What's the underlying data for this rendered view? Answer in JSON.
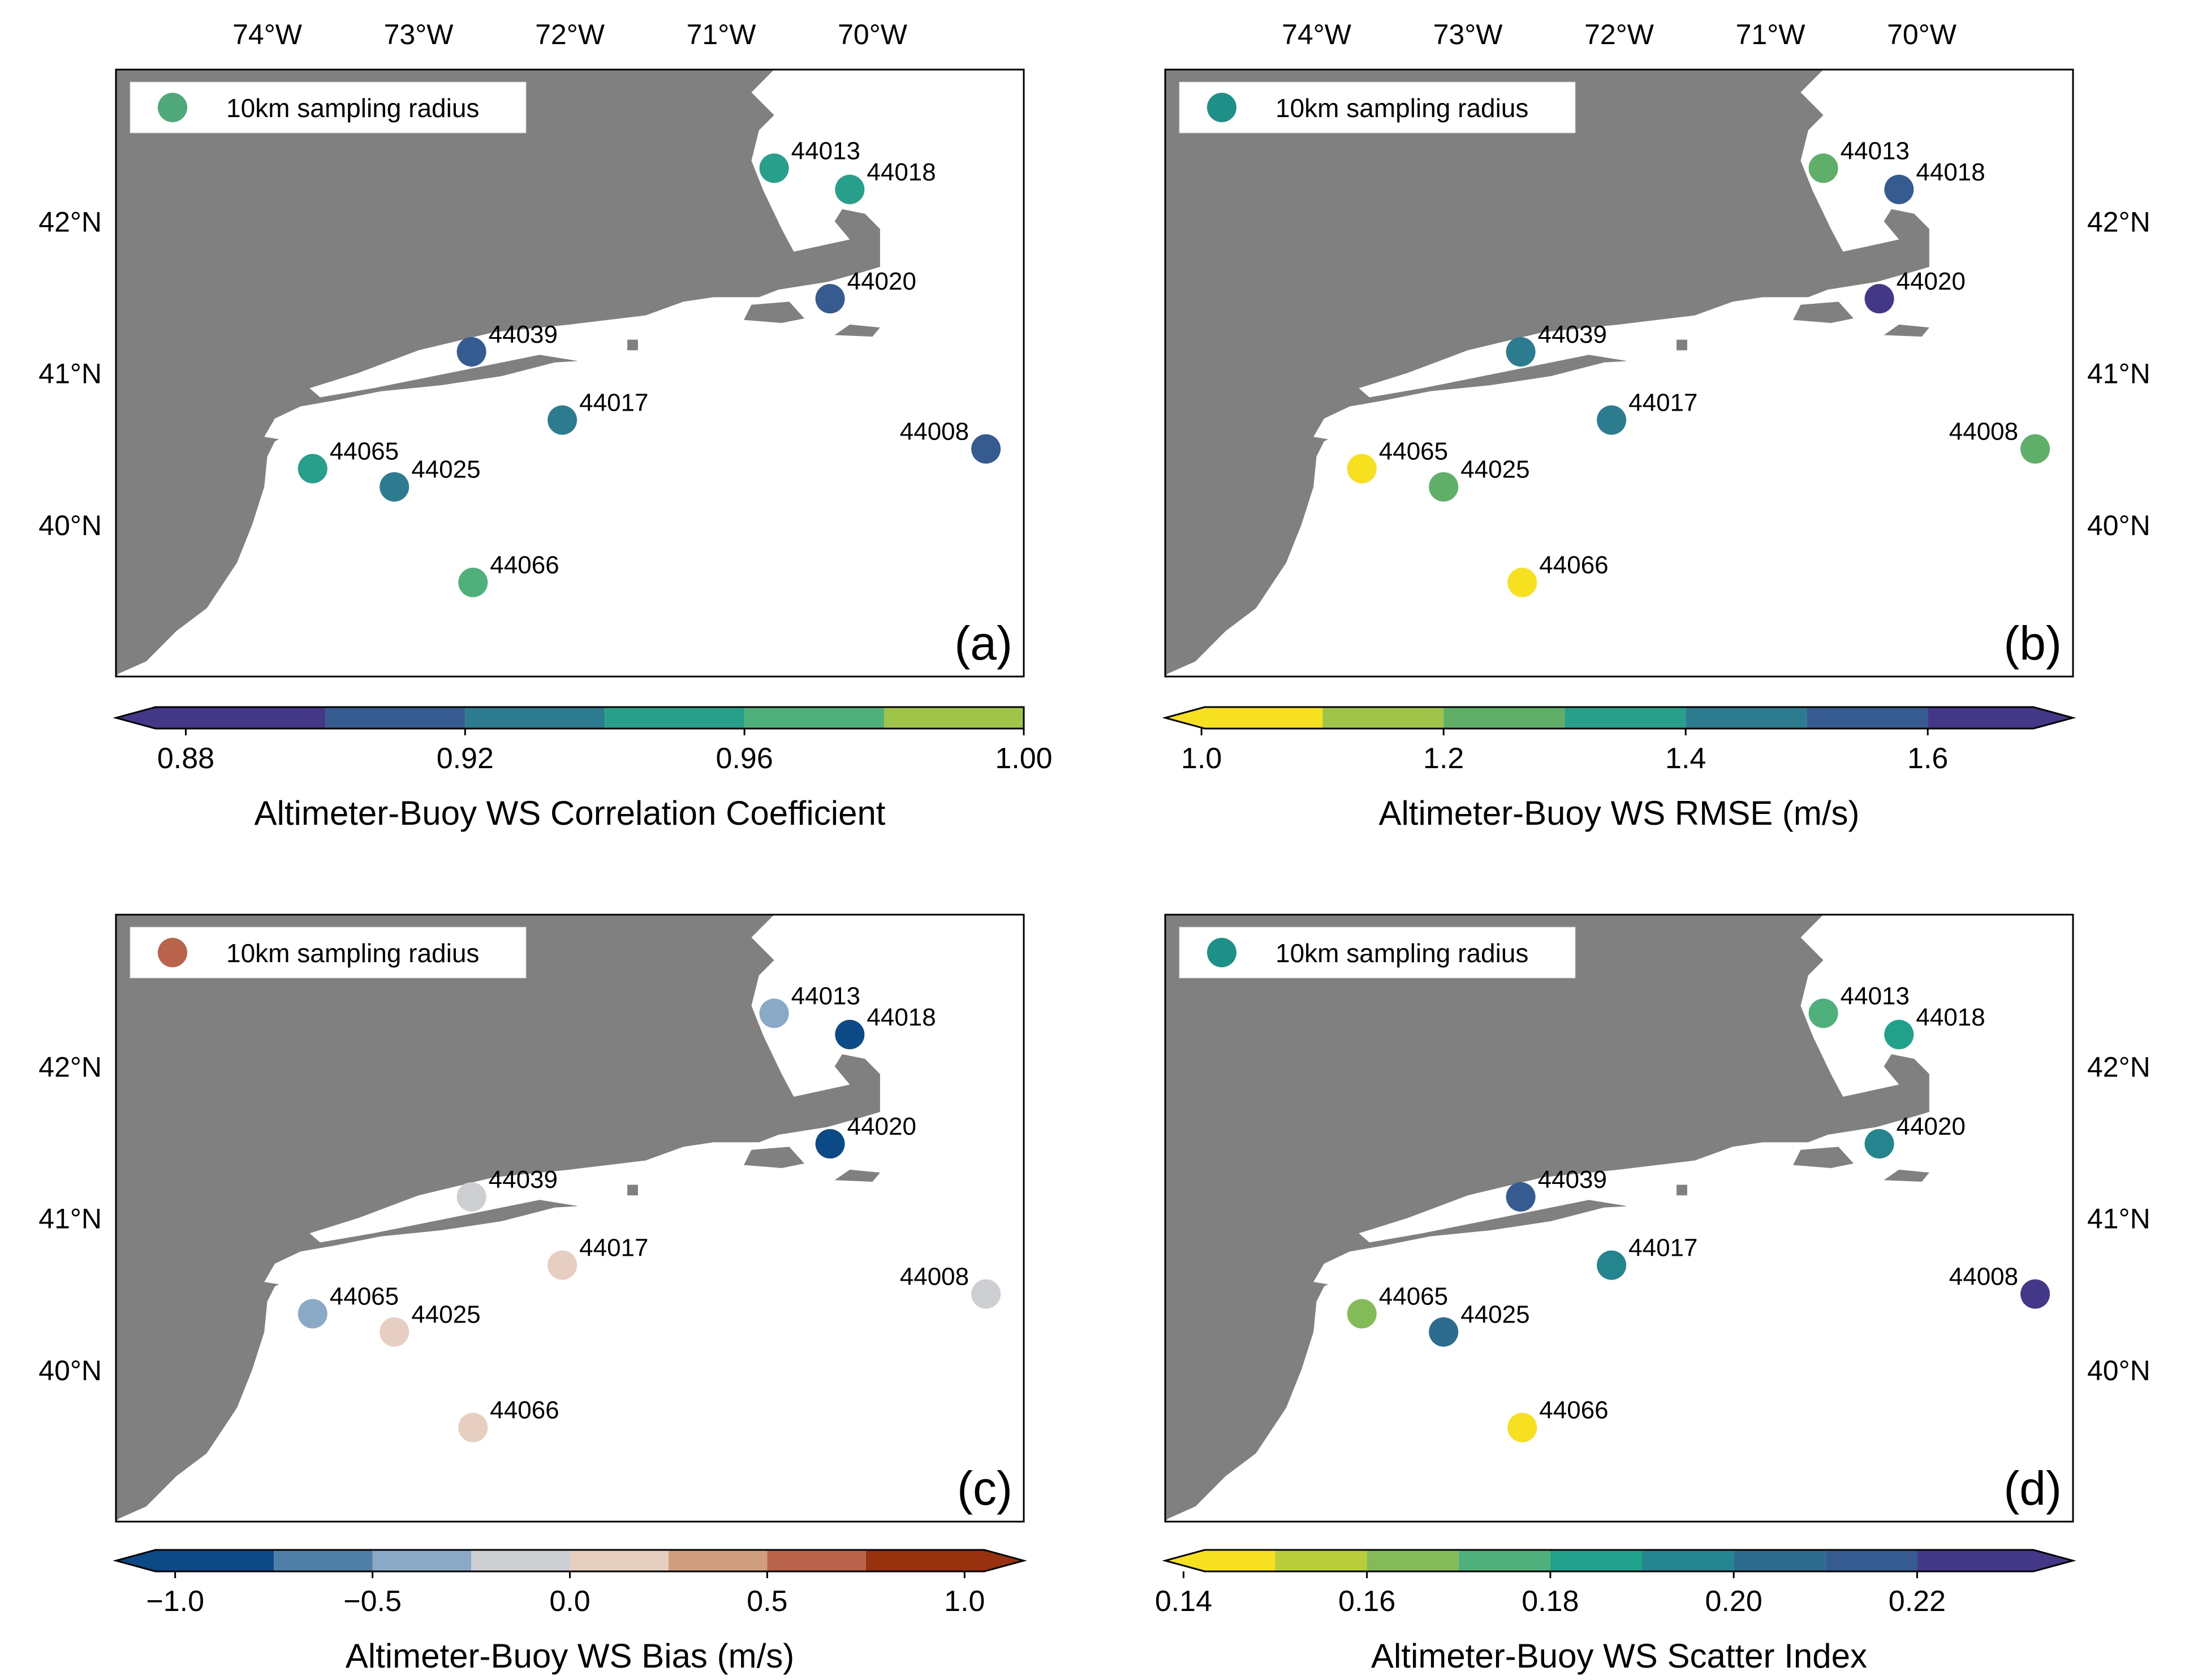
{
  "figure": {
    "lon_labels": [
      "74°W",
      "73°W",
      "72°W",
      "71°W",
      "70°W"
    ],
    "lat_labels": [
      "40°N",
      "41°N",
      "42°N"
    ]
  },
  "chart_data": [
    {
      "type": "scatter",
      "panel_label": "(a)",
      "legend_label": "10km sampling radius",
      "legend_color": "#4ea87a",
      "colorbar_title": "Altimeter-Buoy WS Correlation Coefficient",
      "colorbar_ticks": [
        "0.88",
        "0.92",
        "0.96",
        "1.00"
      ],
      "colorbar_tick_values": [
        0.88,
        0.92,
        0.96,
        1.0
      ],
      "colorbar_range": [
        0.87,
        1.0
      ],
      "colorbar_bounds": [
        0.87,
        0.9,
        0.92,
        0.94,
        0.96,
        0.98,
        1.0
      ],
      "colorbar_colors": [
        "#433888",
        "#355b90",
        "#2d7b8f",
        "#279f8b",
        "#4fb07b",
        "#9fc44a",
        "#f7e01f"
      ],
      "extend": "min",
      "points": [
        {
          "station": "44013",
          "lon": -70.65,
          "lat": 42.35,
          "value": 0.95
        },
        {
          "station": "44018",
          "lon": -70.15,
          "lat": 42.21,
          "value": 0.95
        },
        {
          "station": "44020",
          "lon": -70.28,
          "lat": 41.49,
          "value": 0.91
        },
        {
          "station": "44039",
          "lon": -72.65,
          "lat": 41.14,
          "value": 0.91
        },
        {
          "station": "44017",
          "lon": -72.05,
          "lat": 40.69,
          "value": 0.93
        },
        {
          "station": "44008",
          "lon": -69.25,
          "lat": 40.5,
          "value": 0.91
        },
        {
          "station": "44065",
          "lon": -73.7,
          "lat": 40.37,
          "value": 0.95
        },
        {
          "station": "44025",
          "lon": -73.16,
          "lat": 40.25,
          "value": 0.93
        },
        {
          "station": "44066",
          "lon": -72.64,
          "lat": 39.62,
          "value": 0.97
        }
      ]
    },
    {
      "type": "scatter",
      "panel_label": "(b)",
      "legend_label": "10km sampling radius",
      "legend_color": "#1f9087",
      "colorbar_title": "Altimeter-Buoy WS RMSE (m/s)",
      "colorbar_ticks": [
        "1.0",
        "1.2",
        "1.4",
        "1.6"
      ],
      "colorbar_tick_values": [
        1.0,
        1.2,
        1.4,
        1.6
      ],
      "colorbar_range": [
        0.97,
        1.72
      ],
      "colorbar_bounds": [
        0.97,
        1.1,
        1.2,
        1.3,
        1.4,
        1.5,
        1.6,
        1.72
      ],
      "colorbar_colors": [
        "#f7e01f",
        "#9fc44a",
        "#5faf69",
        "#279f8b",
        "#2d7b8f",
        "#355b90",
        "#433888"
      ],
      "extend": "both",
      "points": [
        {
          "station": "44013",
          "lon": -70.65,
          "lat": 42.35,
          "value": 1.25
        },
        {
          "station": "44018",
          "lon": -70.15,
          "lat": 42.21,
          "value": 1.55
        },
        {
          "station": "44020",
          "lon": -70.28,
          "lat": 41.49,
          "value": 1.65
        },
        {
          "station": "44039",
          "lon": -72.65,
          "lat": 41.14,
          "value": 1.45
        },
        {
          "station": "44017",
          "lon": -72.05,
          "lat": 40.69,
          "value": 1.45
        },
        {
          "station": "44008",
          "lon": -69.25,
          "lat": 40.5,
          "value": 1.25
        },
        {
          "station": "44065",
          "lon": -73.7,
          "lat": 40.37,
          "value": 1.0
        },
        {
          "station": "44025",
          "lon": -73.16,
          "lat": 40.25,
          "value": 1.25
        },
        {
          "station": "44066",
          "lon": -72.64,
          "lat": 39.62,
          "value": 1.0
        }
      ]
    },
    {
      "type": "scatter",
      "panel_label": "(c)",
      "legend_label": "10km sampling radius",
      "legend_color": "#b9634a",
      "colorbar_title": "Altimeter-Buoy WS Bias (m/s)",
      "colorbar_ticks": [
        "−1.0",
        "−0.5",
        "0.0",
        "0.5",
        "1.0"
      ],
      "colorbar_tick_values": [
        -1.0,
        -0.5,
        0.0,
        0.5,
        1.0
      ],
      "colorbar_range": [
        -1.15,
        1.15
      ],
      "colorbar_bounds": [
        -1.15,
        -0.75,
        -0.5,
        -0.25,
        0.0,
        0.25,
        0.5,
        0.75,
        1.15
      ],
      "colorbar_colors": [
        "#0c4a87",
        "#4f7ea7",
        "#8aa9c6",
        "#cdcfd3",
        "#e6cec0",
        "#d19d81",
        "#b9634a",
        "#98310d"
      ],
      "extend": "both",
      "points": [
        {
          "station": "44013",
          "lon": -70.65,
          "lat": 42.35,
          "value": -0.4
        },
        {
          "station": "44018",
          "lon": -70.15,
          "lat": 42.21,
          "value": -0.9
        },
        {
          "station": "44020",
          "lon": -70.28,
          "lat": 41.49,
          "value": -0.9
        },
        {
          "station": "44039",
          "lon": -72.65,
          "lat": 41.14,
          "value": -0.1
        },
        {
          "station": "44017",
          "lon": -72.05,
          "lat": 40.69,
          "value": 0.1
        },
        {
          "station": "44008",
          "lon": -69.25,
          "lat": 40.5,
          "value": -0.1
        },
        {
          "station": "44065",
          "lon": -73.7,
          "lat": 40.37,
          "value": -0.4
        },
        {
          "station": "44025",
          "lon": -73.16,
          "lat": 40.25,
          "value": 0.1
        },
        {
          "station": "44066",
          "lon": -72.64,
          "lat": 39.62,
          "value": 0.1
        }
      ]
    },
    {
      "type": "scatter",
      "panel_label": "(d)",
      "legend_label": "10km sampling radius",
      "legend_color": "#1f9087",
      "colorbar_title": "Altimeter-Buoy WS Scatter Index",
      "colorbar_ticks": [
        "0.14",
        "0.16",
        "0.18",
        "0.20",
        "0.22"
      ],
      "colorbar_tick_values": [
        0.14,
        0.16,
        0.18,
        0.2,
        0.22
      ],
      "colorbar_range": [
        0.138,
        0.237
      ],
      "colorbar_bounds": [
        0.138,
        0.15,
        0.16,
        0.17,
        0.18,
        0.19,
        0.2,
        0.21,
        0.22,
        0.237
      ],
      "colorbar_colors": [
        "#f7e01f",
        "#b9cc3a",
        "#82bb58",
        "#4fb07b",
        "#21a08c",
        "#24858e",
        "#2d6c8e",
        "#355b90",
        "#433888"
      ],
      "extend": "both",
      "points": [
        {
          "station": "44013",
          "lon": -70.65,
          "lat": 42.35,
          "value": 0.175
        },
        {
          "station": "44018",
          "lon": -70.15,
          "lat": 42.21,
          "value": 0.185
        },
        {
          "station": "44020",
          "lon": -70.28,
          "lat": 41.49,
          "value": 0.195
        },
        {
          "station": "44039",
          "lon": -72.65,
          "lat": 41.14,
          "value": 0.215
        },
        {
          "station": "44017",
          "lon": -72.05,
          "lat": 40.69,
          "value": 0.195
        },
        {
          "station": "44008",
          "lon": -69.25,
          "lat": 40.5,
          "value": 0.225
        },
        {
          "station": "44065",
          "lon": -73.7,
          "lat": 40.37,
          "value": 0.16
        },
        {
          "station": "44025",
          "lon": -73.16,
          "lat": 40.25,
          "value": 0.205
        },
        {
          "station": "44066",
          "lon": -72.64,
          "lat": 39.62,
          "value": 0.145
        }
      ]
    }
  ]
}
